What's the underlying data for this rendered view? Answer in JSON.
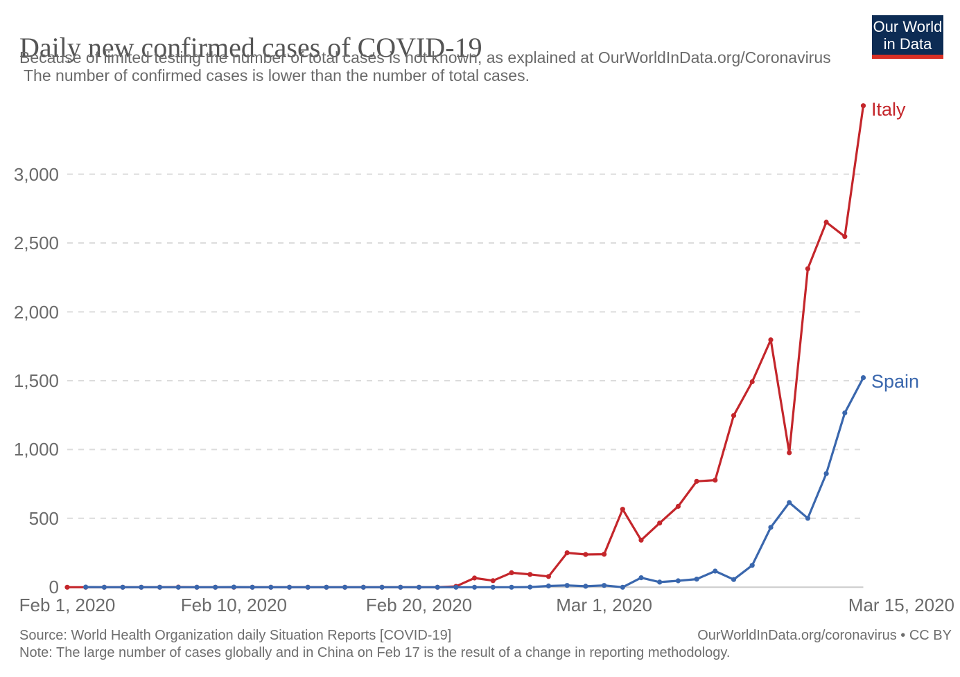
{
  "header": {
    "title": "Daily new confirmed cases of COVID-19",
    "subtitle_line1": "Because of limited testing the number of total cases is not known, as explained at OurWorldInData.org/Coronavirus",
    "subtitle_line2": "The number of confirmed cases is lower than the number of total cases.",
    "logo": {
      "line1": "Our World",
      "line2": "in Data"
    }
  },
  "footer": {
    "source": "Source: World Health Organization daily Situation Reports [COVID-19]",
    "note": "Note: The large number of cases globally and in China on Feb 17 is the result of a change in reporting methodology.",
    "credit": "OurWorldInData.org/coronavirus • CC BY"
  },
  "colors": {
    "italy": "#c4262b",
    "spain": "#3a67ad",
    "gridline": "#dcdcdc",
    "axis_line": "#cccccc",
    "tick_text": "#6b6b6b",
    "logo_navy": "#0d2c54",
    "logo_red": "#d93025"
  },
  "chart_data": {
    "type": "line",
    "title": "Daily new confirmed cases of COVID-19",
    "xlabel": "",
    "ylabel": "",
    "grid": "horizontal dashed",
    "legend_position": "end-of-line labels",
    "ylim": [
      0,
      3600
    ],
    "x": [
      "Feb 1",
      "Feb 2",
      "Feb 3",
      "Feb 4",
      "Feb 5",
      "Feb 6",
      "Feb 7",
      "Feb 8",
      "Feb 9",
      "Feb 10",
      "Feb 11",
      "Feb 12",
      "Feb 13",
      "Feb 14",
      "Feb 15",
      "Feb 16",
      "Feb 17",
      "Feb 18",
      "Feb 19",
      "Feb 20",
      "Feb 21",
      "Feb 22",
      "Feb 23",
      "Feb 24",
      "Feb 25",
      "Feb 26",
      "Feb 27",
      "Feb 28",
      "Feb 29",
      "Mar 1",
      "Mar 2",
      "Mar 3",
      "Mar 4",
      "Mar 5",
      "Mar 6",
      "Mar 7",
      "Mar 8",
      "Mar 9",
      "Mar 10",
      "Mar 11",
      "Mar 12",
      "Mar 13",
      "Mar 14",
      "Mar 15"
    ],
    "x_year": "2020",
    "series": [
      {
        "name": "Italy",
        "color": "#c4262b",
        "values": [
          0,
          0,
          0,
          0,
          0,
          0,
          1,
          0,
          0,
          0,
          0,
          0,
          0,
          0,
          0,
          0,
          0,
          0,
          0,
          0,
          0,
          6,
          67,
          48,
          105,
          93,
          78,
          250,
          238,
          240,
          566,
          342,
          466,
          587,
          769,
          778,
          1247,
          1492,
          1797,
          977,
          2313,
          2651,
          2547,
          3497
        ]
      },
      {
        "name": "Spain",
        "color": "#3a67ad",
        "values": [
          null,
          1,
          0,
          0,
          0,
          0,
          0,
          0,
          0,
          1,
          0,
          0,
          0,
          0,
          0,
          0,
          0,
          0,
          0,
          0,
          0,
          0,
          0,
          0,
          0,
          1,
          9,
          13,
          7,
          13,
          0,
          69,
          37,
          47,
          59,
          117,
          56,
          159,
          435,
          615,
          501,
          825,
          1266,
          1522
        ]
      }
    ],
    "ytick_values": [
      0,
      500,
      1000,
      1500,
      2000,
      2500,
      3000
    ],
    "ytick_labels": [
      "0",
      "500",
      "1,000",
      "1,500",
      "2,000",
      "2,500",
      "3,000"
    ],
    "xtick_labels": [
      "Feb 1, 2020",
      "Feb 10, 2020",
      "Feb 20, 2020",
      "Mar 1, 2020",
      "Mar 15, 2020"
    ],
    "xtick_day_indices": [
      0,
      9,
      19,
      29,
      43
    ]
  }
}
